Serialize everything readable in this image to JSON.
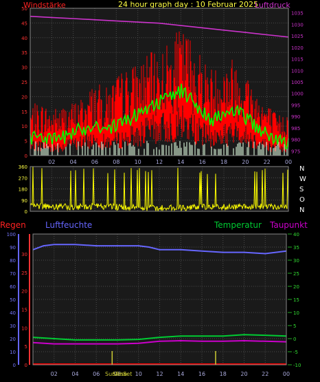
{
  "header": {
    "title": "24 hour graph day : 10 Februar 2025",
    "left_label": "Windstärke",
    "right_label": "Luftdruck"
  },
  "direction_labels": [
    "N",
    "W",
    "S",
    "O",
    "N"
  ],
  "panel3_labels": {
    "rain": "Regen",
    "humidity": "Luftfeuchte",
    "temperature": "Temperatur",
    "dewpoint": "Taupunkt",
    "sunrise": "SunRise",
    "sunset": "SunSet"
  },
  "colors": {
    "background": "#000000",
    "plot_bg": "#1a1a1a",
    "grid": "#4a4a4a",
    "frame": "#8a8a8a",
    "wind_speed": "#ff0000",
    "wind_avg": "#00ff00",
    "pressure": "#cc33cc",
    "calm": "#cfe8cf",
    "wind_dir": "#ffff00",
    "humidity": "#6666ff",
    "temperature": "#00cc33",
    "dewpoint": "#cc00cc",
    "rain": "#ff0000",
    "sun": "#cccc33",
    "x_tick": "#aaaadd"
  },
  "chart_data": [
    {
      "type": "line",
      "id": "wind_pressure",
      "x_ticks": [
        "02",
        "04",
        "06",
        "08",
        "10",
        "12",
        "14",
        "16",
        "18",
        "20",
        "22",
        "00"
      ],
      "x_range_hours": [
        0,
        24
      ],
      "y_left": {
        "label": "Windstärke",
        "ticks": [
          0,
          5,
          10,
          15,
          20,
          25,
          30,
          35,
          40,
          45,
          50
        ],
        "range": [
          0,
          50
        ]
      },
      "y_right": {
        "label": "Luftdruck",
        "ticks": [
          975,
          980,
          985,
          990,
          995,
          1000,
          1005,
          1010,
          1015,
          1020,
          1025,
          1030,
          1035
        ],
        "range": [
          973,
          1037
        ]
      },
      "series": [
        {
          "key": "gust",
          "x": [
            0,
            1,
            2,
            3,
            4,
            5,
            6,
            7,
            8,
            9,
            10,
            11,
            12,
            13,
            14,
            15,
            16,
            17,
            18,
            19,
            20,
            21,
            22,
            23,
            24
          ],
          "values": [
            15,
            16,
            14,
            15,
            16,
            18,
            22,
            20,
            24,
            26,
            28,
            30,
            32,
            34,
            38,
            36,
            30,
            26,
            28,
            30,
            26,
            20,
            16,
            12,
            14
          ]
        },
        {
          "key": "avg",
          "x": [
            0,
            1,
            2,
            3,
            4,
            5,
            6,
            7,
            8,
            9,
            10,
            11,
            12,
            13,
            14,
            15,
            16,
            17,
            18,
            19,
            20,
            21,
            22,
            23,
            24
          ],
          "values": [
            6,
            7,
            5,
            6,
            8,
            9,
            11,
            9,
            10,
            12,
            14,
            17,
            18,
            20,
            22,
            19,
            15,
            12,
            14,
            15,
            13,
            10,
            7,
            5,
            4
          ]
        },
        {
          "key": "pressure",
          "x": [
            0,
            2,
            4,
            6,
            8,
            10,
            12,
            14,
            16,
            18,
            20,
            22,
            24
          ],
          "values": [
            1033.5,
            1033,
            1032.5,
            1032,
            1031.5,
            1031,
            1030.5,
            1029.5,
            1028.5,
            1027.5,
            1026.5,
            1025.5,
            1024.5
          ]
        }
      ]
    },
    {
      "type": "line",
      "id": "wind_direction",
      "x_ticks": [
        "02",
        "04",
        "06",
        "08",
        "10",
        "12",
        "14",
        "16",
        "18",
        "20",
        "22",
        "00"
      ],
      "y_ticks": [
        0,
        90,
        180,
        270,
        360
      ],
      "y_range": [
        0,
        360
      ],
      "series": [
        {
          "key": "direction",
          "x": [
            0,
            2,
            4,
            6,
            8,
            10,
            12,
            14,
            16,
            18,
            20,
            22,
            24
          ],
          "values": [
            45,
            40,
            35,
            40,
            35,
            30,
            25,
            30,
            35,
            35,
            40,
            40,
            35
          ]
        }
      ]
    },
    {
      "type": "line",
      "id": "temp_hum_rain",
      "x_ticks": [
        "02",
        "04",
        "06",
        "08",
        "10",
        "12",
        "14",
        "16",
        "18",
        "20",
        "22",
        "00"
      ],
      "y_humidity": {
        "label": "Luftfeuchte",
        "ticks": [
          0,
          10,
          20,
          30,
          40,
          50,
          60,
          70,
          80,
          90,
          100
        ],
        "range": [
          0,
          100
        ]
      },
      "y_rain": {
        "label": "Regen",
        "ticks": [
          0,
          5,
          10,
          15,
          20,
          25,
          30
        ],
        "range": [
          0,
          30
        ]
      },
      "y_temperature": {
        "label": "Temperatur",
        "ticks": [
          -10,
          -5,
          0,
          5,
          10,
          15,
          20,
          25,
          30,
          35,
          40
        ],
        "range": [
          -10,
          40
        ]
      },
      "series": [
        {
          "key": "humidity",
          "x": [
            0,
            1,
            2,
            4,
            6,
            8,
            10,
            11,
            12,
            14,
            16,
            18,
            20,
            22,
            24
          ],
          "values": [
            88,
            91,
            92,
            92,
            91,
            91,
            91,
            90,
            88,
            88,
            87,
            86,
            86,
            85,
            87
          ]
        },
        {
          "key": "temperature",
          "x": [
            0,
            2,
            4,
            6,
            8,
            10,
            12,
            14,
            16,
            18,
            20,
            22,
            24
          ],
          "values": [
            0.5,
            0,
            -0.5,
            -0.5,
            -0.5,
            -0.3,
            0.5,
            1,
            1,
            1,
            1.5,
            1.3,
            1
          ]
        },
        {
          "key": "dewpoint",
          "x": [
            0,
            2,
            4,
            6,
            8,
            10,
            12,
            14,
            16,
            18,
            20,
            22,
            24
          ],
          "values": [
            -1.5,
            -2,
            -2,
            -2,
            -2,
            -1.8,
            -1,
            -0.8,
            -1,
            -1,
            -0.8,
            -1,
            -1.2
          ]
        },
        {
          "key": "rain",
          "x": [
            0,
            24
          ],
          "values": [
            0,
            0
          ]
        }
      ],
      "sun_events_hours": [
        7.5,
        17.3
      ]
    }
  ]
}
